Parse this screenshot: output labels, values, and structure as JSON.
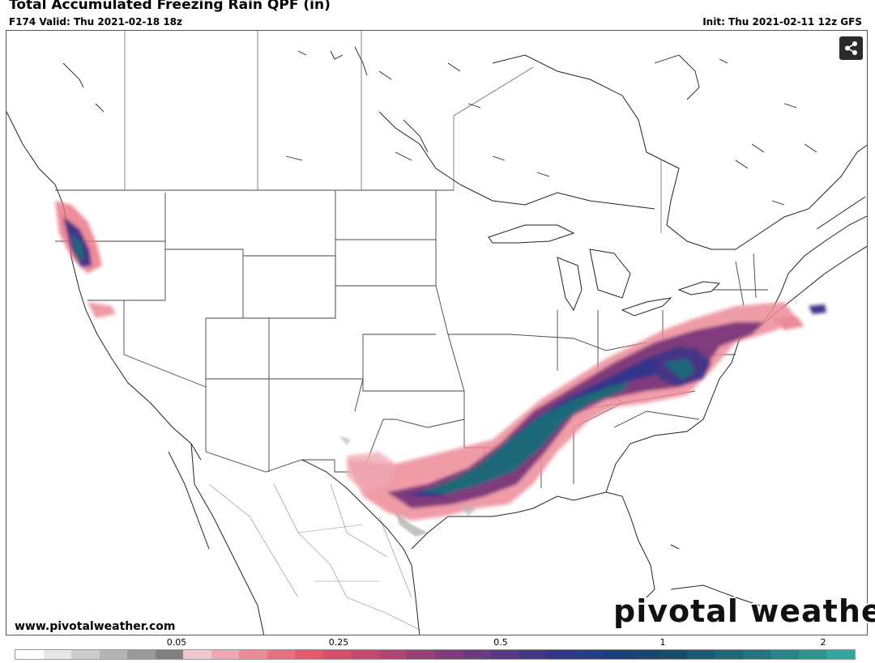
{
  "header": {
    "title": "Total Accumulated Freezing Rain QPF (in)",
    "valid": "F174 Valid: Thu 2021-02-18 18z",
    "init": "Init: Thu 2021-02-11 12z GFS"
  },
  "footer": {
    "website": "www.pivotalweather.com",
    "brand": "pivotal weather"
  },
  "share_button": {
    "icon": "share-icon"
  },
  "colorbar": {
    "tick_labels": [
      "0.05",
      "0.25",
      "0.5",
      "1",
      "2"
    ],
    "colors": [
      "#ffffff",
      "#e6e6e6",
      "#cccccc",
      "#b3b3b3",
      "#999999",
      "#808080",
      "#f2c8cf",
      "#f0a9b4",
      "#ec8b98",
      "#e87080",
      "#e45a6a",
      "#d84e6a",
      "#c7486e",
      "#b04472",
      "#983f77",
      "#7f3b7b",
      "#6b3a80",
      "#573884",
      "#443687",
      "#33358a",
      "#263d87",
      "#1b3f7b",
      "#17456f",
      "#174d6a",
      "#1a5a72",
      "#1e6878",
      "#22757f",
      "#278487",
      "#2c938e",
      "#32a5a1"
    ]
  }
}
